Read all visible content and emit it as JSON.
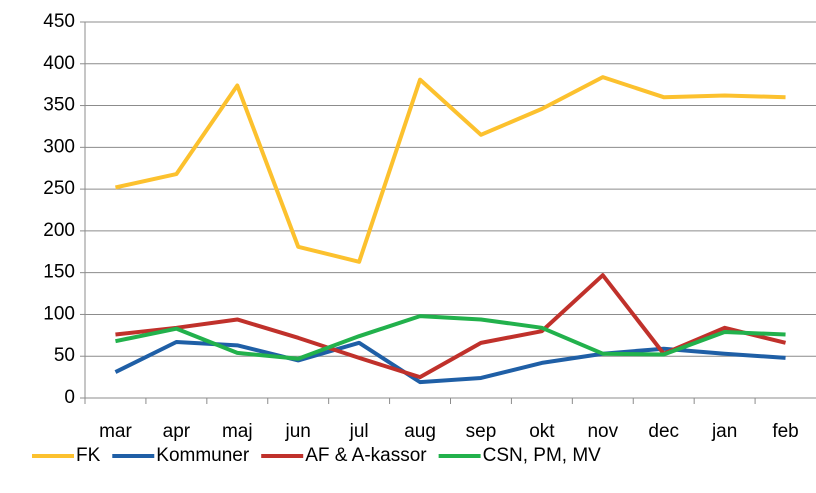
{
  "chart_data": {
    "type": "line",
    "categories": [
      "mar",
      "apr",
      "maj",
      "jun",
      "jul",
      "aug",
      "sep",
      "okt",
      "nov",
      "dec",
      "jan",
      "feb"
    ],
    "series": [
      {
        "name": "FK",
        "color": "#fcc12e",
        "values": [
          252,
          268,
          374,
          181,
          163,
          381,
          315,
          346,
          384,
          360,
          362,
          360
        ]
      },
      {
        "name": "Kommuner",
        "color": "#1f5fa6",
        "values": [
          31,
          67,
          63,
          45,
          66,
          19,
          24,
          42,
          53,
          59,
          53,
          48
        ]
      },
      {
        "name": "AF & A-kassor",
        "color": "#c0312b",
        "values": [
          76,
          84,
          94,
          72,
          48,
          25,
          66,
          80,
          147,
          53,
          84,
          66
        ]
      },
      {
        "name": "CSN, PM, MV",
        "color": "#22b14c",
        "values": [
          68,
          83,
          54,
          47,
          74,
          98,
          94,
          84,
          53,
          52,
          79,
          76
        ]
      }
    ],
    "ylim": [
      0,
      450
    ],
    "yticks": [
      0,
      50,
      100,
      150,
      200,
      250,
      300,
      350,
      400,
      450
    ],
    "grid": true,
    "legend": "bottom"
  }
}
